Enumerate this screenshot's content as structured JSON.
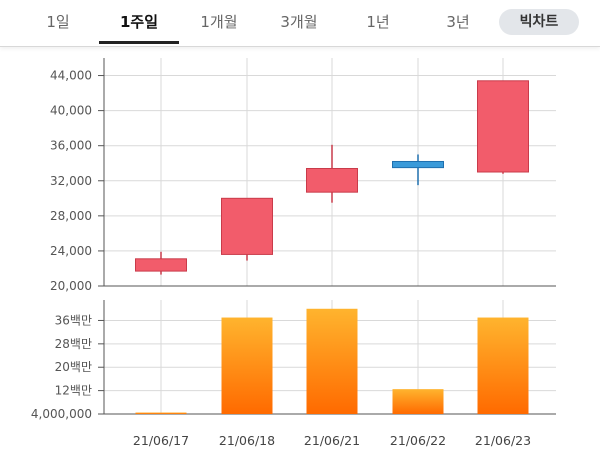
{
  "tabs": [
    {
      "label": "1일",
      "active": false
    },
    {
      "label": "1주일",
      "active": true
    },
    {
      "label": "1개월",
      "active": false
    },
    {
      "label": "3개월",
      "active": false
    },
    {
      "label": "1년",
      "active": false
    },
    {
      "label": "3년",
      "active": false
    },
    {
      "label": "빅차트",
      "active": false
    }
  ],
  "colors": {
    "up": "#f25c6b",
    "down": "#3a9ad9",
    "volume_top": "#ffb42e",
    "volume_bottom": "#ff6a00",
    "grid": "#d9d9d9",
    "axis": "#555555"
  },
  "chart_data": [
    {
      "type": "candlestick",
      "categories": [
        "21/06/17",
        "21/06/18",
        "21/06/21",
        "21/06/22",
        "21/06/23"
      ],
      "series": [
        {
          "date": "21/06/17",
          "open": 21700,
          "high": 23900,
          "low": 21300,
          "close": 23100,
          "direction": "up"
        },
        {
          "date": "21/06/18",
          "open": 23600,
          "high": 30000,
          "low": 22900,
          "close": 30000,
          "direction": "up"
        },
        {
          "date": "21/06/21",
          "open": 30700,
          "high": 36100,
          "low": 29500,
          "close": 33400,
          "direction": "up"
        },
        {
          "date": "21/06/22",
          "open": 34200,
          "high": 35000,
          "low": 31500,
          "close": 33500,
          "direction": "down"
        },
        {
          "date": "21/06/23",
          "open": 33000,
          "high": 43400,
          "low": 32800,
          "close": 43400,
          "direction": "up"
        }
      ],
      "yticks": [
        "20,000",
        "24,000",
        "28,000",
        "32,000",
        "36,000",
        "40,000",
        "44,000"
      ],
      "ylim": [
        20000,
        46000
      ],
      "grid": true
    },
    {
      "type": "bar",
      "categories": [
        "21/06/17",
        "21/06/18",
        "21/06/21",
        "21/06/22",
        "21/06/23"
      ],
      "values": [
        4500000,
        37000000,
        40000000,
        12500000,
        37000000
      ],
      "yticks": [
        "4,000,000",
        "12백만",
        "20백만",
        "28백만",
        "36백만"
      ],
      "ylim": [
        4000000,
        43000000
      ],
      "grid": true
    }
  ]
}
